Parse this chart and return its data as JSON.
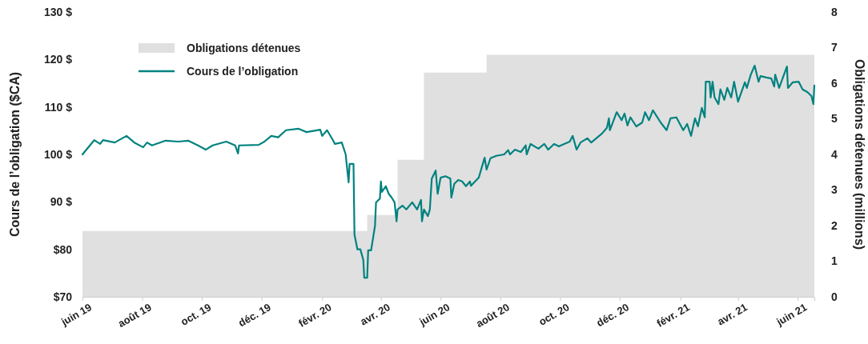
{
  "chart_data": {
    "type": "line",
    "ylabel": "Cours de l’obligation ($CA)",
    "y2label": "Obligations détenues (millions)",
    "xlim": [
      "2019-06-01",
      "2021-06-18"
    ],
    "xticks": [
      {
        "value": "2019-06-01",
        "label": "juin 19"
      },
      {
        "value": "2019-08-01",
        "label": "août 19"
      },
      {
        "value": "2019-10-01",
        "label": "oct. 19"
      },
      {
        "value": "2019-12-01",
        "label": "déc. 19"
      },
      {
        "value": "2020-02-01",
        "label": "févr. 20"
      },
      {
        "value": "2020-04-01",
        "label": "avr. 20"
      },
      {
        "value": "2020-06-01",
        "label": "juin 20"
      },
      {
        "value": "2020-08-01",
        "label": "août 20"
      },
      {
        "value": "2020-10-01",
        "label": "oct. 20"
      },
      {
        "value": "2020-12-01",
        "label": "déc. 20"
      },
      {
        "value": "2021-02-01",
        "label": "févr. 21"
      },
      {
        "value": "2021-04-01",
        "label": "avr. 21"
      },
      {
        "value": "2021-06-01",
        "label": "juin 21"
      }
    ],
    "ylim": [
      70,
      130
    ],
    "yticks": [
      {
        "value": 70,
        "label": "$70"
      },
      {
        "value": 80,
        "label": "$80"
      },
      {
        "value": 90,
        "label": "90 $"
      },
      {
        "value": 100,
        "label": "100 $"
      },
      {
        "value": 110,
        "label": "110 $"
      },
      {
        "value": 120,
        "label": "120 $"
      },
      {
        "value": 130,
        "label": "130 $"
      }
    ],
    "y2lim": [
      0,
      8
    ],
    "y2ticks": [
      0,
      1,
      2,
      3,
      4,
      5,
      6,
      7,
      8
    ],
    "legend": "top left",
    "grid": false,
    "series": [
      {
        "name": "Obligations détenues",
        "type": "area",
        "axis": "y2",
        "color": "#e0e0e0",
        "x": [
          "2019-06-01",
          "2020-03-18",
          "2020-03-18",
          "2020-04-18",
          "2020-04-18",
          "2020-05-15",
          "2020-05-15",
          "2020-07-18",
          "2020-07-18",
          "2021-06-18"
        ],
        "values": [
          1.85,
          1.85,
          2.3,
          2.3,
          3.85,
          3.85,
          6.3,
          6.3,
          6.8,
          6.8
        ]
      },
      {
        "name": "Cours de l’obligation",
        "axis": "y",
        "color": "#00827f",
        "x": [
          "2019-06-01",
          "2019-06-13",
          "2019-06-19",
          "2019-06-22",
          "2019-07-04",
          "2019-07-16",
          "2019-07-24",
          "2019-08-02",
          "2019-08-06",
          "2019-08-11",
          "2019-08-25",
          "2019-09-07",
          "2019-09-17",
          "2019-09-27",
          "2019-10-05",
          "2019-10-12",
          "2019-10-26",
          "2019-11-04",
          "2019-11-07",
          "2019-11-08",
          "2019-11-28",
          "2019-12-04",
          "2019-12-11",
          "2019-12-18",
          "2019-12-26",
          "2020-01-08",
          "2020-01-16",
          "2020-01-30",
          "2020-02-01",
          "2020-02-06",
          "2020-02-12",
          "2020-02-14",
          "2020-02-21",
          "2020-02-25",
          "2020-02-26",
          "2020-02-28",
          "2020-02-29",
          "2020-03-04",
          "2020-03-05",
          "2020-03-08",
          "2020-03-11",
          "2020-03-14",
          "2020-03-15",
          "2020-03-18",
          "2020-03-19",
          "2020-03-22",
          "2020-03-26",
          "2020-03-27",
          "2020-03-31",
          "2020-04-01",
          "2020-04-02",
          "2020-04-06",
          "2020-04-09",
          "2020-04-12",
          "2020-04-15",
          "2020-04-17",
          "2020-04-18",
          "2020-04-23",
          "2020-04-27",
          "2020-05-03",
          "2020-05-08",
          "2020-05-12",
          "2020-05-13",
          "2020-05-15",
          "2020-05-19",
          "2020-05-21",
          "2020-05-23",
          "2020-05-27",
          "2020-05-29",
          "2020-06-01",
          "2020-06-06",
          "2020-06-11",
          "2020-06-12",
          "2020-06-15",
          "2020-06-19",
          "2020-06-23",
          "2020-06-27",
          "2020-07-01",
          "2020-07-02",
          "2020-07-10",
          "2020-07-16",
          "2020-07-18",
          "2020-07-22",
          "2020-07-28",
          "2020-08-05",
          "2020-08-09",
          "2020-08-11",
          "2020-08-16",
          "2020-08-22",
          "2020-08-27",
          "2020-08-28",
          "2020-09-01",
          "2020-09-09",
          "2020-09-15",
          "2020-09-19",
          "2020-09-25",
          "2020-09-30",
          "2020-10-02",
          "2020-10-11",
          "2020-10-14",
          "2020-10-18",
          "2020-10-22",
          "2020-10-29",
          "2020-11-02",
          "2020-11-13",
          "2020-11-18",
          "2020-11-20",
          "2020-11-21",
          "2020-11-28",
          "2020-12-03",
          "2020-12-06",
          "2020-12-09",
          "2020-12-12",
          "2020-12-18",
          "2020-12-24",
          "2020-12-27",
          "2020-12-31",
          "2021-01-04",
          "2021-01-12",
          "2021-01-18",
          "2021-01-22",
          "2021-01-28",
          "2021-02-04",
          "2021-02-08",
          "2021-02-12",
          "2021-02-16",
          "2021-02-19",
          "2021-02-23",
          "2021-02-26",
          "2021-02-27",
          "2021-03-03",
          "2021-03-04",
          "2021-03-06",
          "2021-03-08",
          "2021-03-12",
          "2021-03-14",
          "2021-03-18",
          "2021-03-21",
          "2021-03-25",
          "2021-03-28",
          "2021-04-01",
          "2021-04-08",
          "2021-04-10",
          "2021-04-14",
          "2021-04-18",
          "2021-04-22",
          "2021-04-24",
          "2021-04-30",
          "2021-05-05",
          "2021-05-08",
          "2021-05-09",
          "2021-05-13",
          "2021-05-21",
          "2021-05-22",
          "2021-05-27",
          "2021-06-02",
          "2021-06-06",
          "2021-06-11",
          "2021-06-15",
          "2021-06-17",
          "2021-06-18"
        ],
        "values": [
          100,
          103.0,
          102.2,
          103.0,
          102.5,
          103.9,
          102.5,
          101.5,
          102.5,
          101.9,
          102.9,
          102.7,
          102.9,
          101.9,
          101.0,
          101.9,
          102.7,
          101.9,
          100.2,
          101.9,
          102.0,
          102.7,
          103.9,
          103.6,
          105.1,
          105.4,
          104.7,
          105.2,
          103.9,
          105.1,
          103.0,
          102.2,
          102.5,
          100.0,
          98.0,
          94.1,
          98.0,
          98.0,
          83.1,
          80.0,
          80.0,
          77.8,
          74.0,
          74.0,
          79.8,
          79.8,
          85.0,
          89.9,
          90.7,
          94.3,
          92.1,
          93.3,
          91.7,
          90.9,
          89.9,
          85.9,
          88.4,
          89.2,
          88.4,
          89.9,
          88.4,
          90.4,
          85.9,
          88.4,
          87.0,
          88.4,
          94.9,
          96.6,
          91.7,
          95.1,
          95.4,
          94.9,
          90.9,
          93.8,
          94.6,
          94.3,
          93.3,
          94.3,
          93.4,
          95.1,
          99.3,
          96.8,
          99.2,
          99.7,
          100.0,
          100.9,
          100.0,
          101.0,
          100.5,
          101.9,
          100.0,
          102.2,
          101.2,
          102.2,
          101.0,
          102.2,
          101.7,
          101.9,
          102.7,
          103.9,
          101.0,
          102.5,
          103.4,
          102.5,
          104.4,
          105.6,
          107.6,
          105.1,
          108.9,
          107.2,
          108.6,
          106.1,
          107.8,
          105.9,
          106.7,
          108.9,
          107.2,
          109.3,
          106.7,
          105.1,
          107.6,
          107.8,
          105.1,
          106.4,
          103.9,
          107.6,
          105.9,
          109.8,
          107.8,
          115.3,
          115.3,
          112.0,
          115.3,
          112.0,
          110.6,
          113.7,
          111.5,
          114.0,
          112.0,
          115.3,
          111.1,
          115.2,
          114.0,
          116.8,
          118.7,
          115.3,
          116.5,
          116.2,
          116.0,
          114.3,
          116.8,
          114.0,
          118.5,
          114.0,
          115.2,
          115.3,
          113.7,
          113.1,
          112.3,
          110.6,
          114.5
        ]
      }
    ]
  }
}
